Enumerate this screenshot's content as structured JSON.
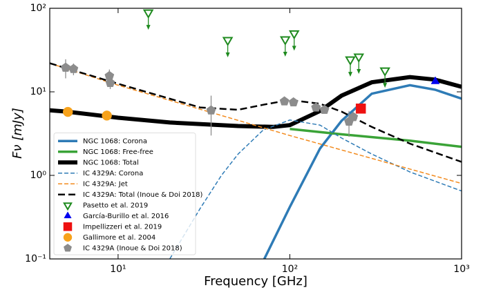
{
  "chart_data": {
    "type": "line",
    "xlabel": "Frequency [GHz]",
    "ylabel": "Fν [mJy]",
    "xscale": "log",
    "yscale": "log",
    "xlim": [
      4,
      1000
    ],
    "ylim": [
      0.1,
      100
    ],
    "xticks": [
      {
        "value": 10,
        "label": "10¹"
      },
      {
        "value": 100,
        "label": "10²"
      },
      {
        "value": 1000,
        "label": "10³"
      }
    ],
    "yticks": [
      {
        "value": 0.1,
        "label": "10⁻¹"
      },
      {
        "value": 1,
        "label": "10⁰"
      },
      {
        "value": 10,
        "label": "10¹"
      },
      {
        "value": 100,
        "label": "10²"
      }
    ],
    "legend": "lower left",
    "series": [
      {
        "name": "NGC 1068: Corona",
        "kind": "line",
        "color": "#2e7bb6",
        "width": 3.5,
        "linestyle": "solid",
        "x": [
          71,
          100,
          150,
          200,
          300,
          500,
          700,
          1000
        ],
        "values": [
          0.1,
          0.42,
          2.1,
          4.5,
          9.5,
          12,
          10.6,
          8.3
        ]
      },
      {
        "name": "NGC 1068: Free-free",
        "kind": "line",
        "color": "#3aa337",
        "width": 3.5,
        "linestyle": "solid",
        "x": [
          100,
          200,
          500,
          1000
        ],
        "values": [
          3.6,
          3.1,
          2.6,
          2.2
        ]
      },
      {
        "name": "NGC 1068: Total",
        "kind": "line",
        "color": "#000000",
        "width": 6,
        "linestyle": "solid",
        "x": [
          4,
          5,
          10,
          20,
          50,
          80,
          100,
          150,
          200,
          300,
          500,
          700,
          1000
        ],
        "values": [
          6.0,
          5.8,
          4.9,
          4.3,
          3.9,
          3.8,
          4.0,
          5.9,
          9,
          13,
          15,
          14,
          11.5
        ]
      },
      {
        "name": "IC 4329A: Corona",
        "kind": "line",
        "color": "#2e7bb6",
        "width": 1.5,
        "linestyle": "dashed",
        "x": [
          20,
          30,
          40,
          50,
          70,
          100,
          150,
          200,
          300,
          500,
          1000
        ],
        "values": [
          0.1,
          0.4,
          1.0,
          1.8,
          3.5,
          4.6,
          4.0,
          2.8,
          1.8,
          1.1,
          0.65
        ]
      },
      {
        "name": "IC 4329A: Jet",
        "kind": "line",
        "color": "#f28a1d",
        "width": 1.5,
        "linestyle": "dashed",
        "x": [
          4,
          10,
          100,
          1000
        ],
        "values": [
          22,
          12,
          3.0,
          0.8
        ]
      },
      {
        "name": "IC 4329A: Total (Inoue & Doi 2018)",
        "kind": "line",
        "color": "#000000",
        "width": 2.5,
        "linestyle": "dashed",
        "x": [
          4,
          10,
          30,
          50,
          70,
          100,
          150,
          200,
          300,
          500,
          1000
        ],
        "values": [
          22,
          12.5,
          6.5,
          6.1,
          7,
          8,
          7.2,
          5.8,
          3.8,
          2.4,
          1.45
        ]
      },
      {
        "name": "Pasetto et al. 2019",
        "kind": "scatter",
        "marker": "triangle-down",
        "color": "#1e8a1e",
        "open": true,
        "upper_limit": true,
        "x": [
          15,
          43.5,
          94,
          106,
          225,
          252,
          358
        ],
        "values": [
          89,
          41.7,
          42.5,
          50,
          24.4,
          26.4,
          18
        ]
      },
      {
        "name": "García-Burillo et al. 2016",
        "kind": "scatter",
        "marker": "triangle-up",
        "color": "#0000ee",
        "x": [
          703
        ],
        "values": [
          13.3
        ]
      },
      {
        "name": "Impellizzeri et al. 2019",
        "kind": "scatter",
        "marker": "square",
        "color": "#ee1111",
        "x": [
          259
        ],
        "values": [
          6.3
        ]
      },
      {
        "name": "Gallimore et al. 2004",
        "kind": "scatter",
        "marker": "circle",
        "color": "#f7a21b",
        "x": [
          5.1,
          8.6
        ],
        "values": [
          5.75,
          5.2
        ]
      },
      {
        "name": "IC 4329A (Inoue & Doi 2018)",
        "kind": "scatter",
        "marker": "pentagon",
        "color": "#8c8c8c",
        "x": [
          4.95,
          5.5,
          8.9,
          9.0,
          34.8,
          93,
          105,
          142,
          159,
          221,
          234
        ],
        "values": [
          19.5,
          18.8,
          15.5,
          12.8,
          6.0,
          7.7,
          7.5,
          6.5,
          6.1,
          4.4,
          5.0
        ],
        "yerr": [
          5,
          3,
          3,
          2,
          3,
          0.5,
          0.5,
          0.3,
          0.3,
          1.5,
          0.5
        ]
      }
    ]
  }
}
